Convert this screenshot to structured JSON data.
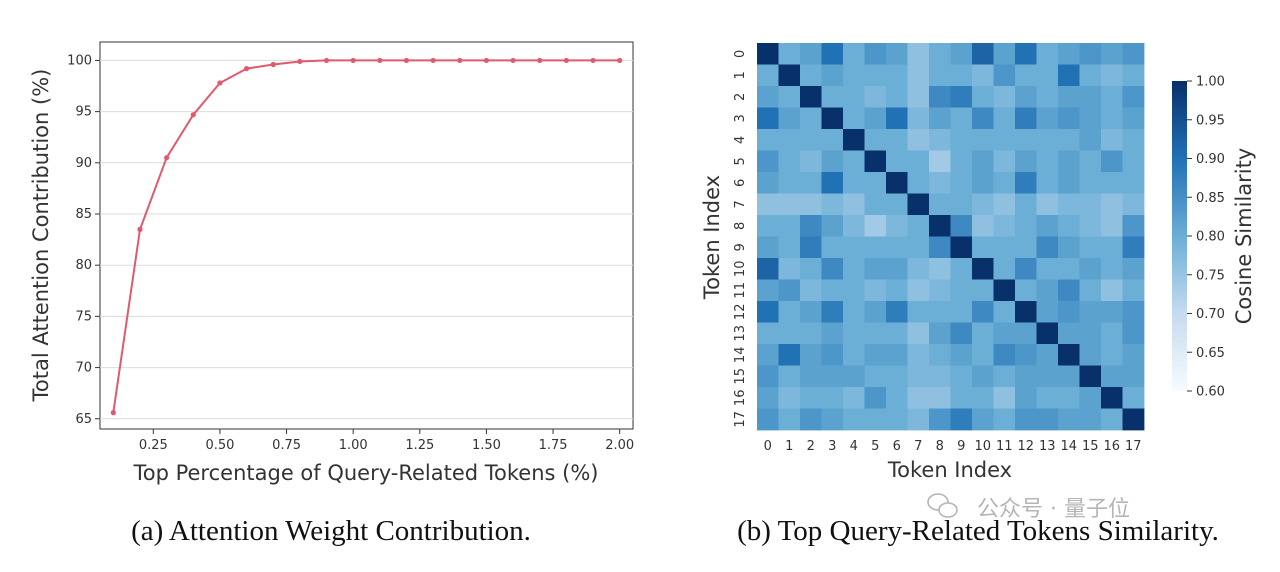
{
  "chart_data": [
    {
      "type": "line",
      "title": "",
      "xlabel": "Top Percentage of Query-Related Tokens (%)",
      "ylabel": "Total Attention Contribution (%)",
      "xlim": [
        0.05,
        2.05
      ],
      "ylim": [
        64,
        101.8
      ],
      "xticks": [
        0.25,
        0.5,
        0.75,
        1.0,
        1.25,
        1.5,
        1.75,
        2.0
      ],
      "xtick_labels": [
        "0.25",
        "0.50",
        "0.75",
        "1.00",
        "1.25",
        "1.50",
        "1.75",
        "2.00"
      ],
      "yticks": [
        65,
        70,
        75,
        80,
        85,
        90,
        95,
        100
      ],
      "ytick_labels": [
        "65",
        "70",
        "75",
        "80",
        "85",
        "90",
        "95",
        "100"
      ],
      "grid": "horizontal",
      "color": "#e05a6e",
      "series": [
        {
          "name": "attention contribution",
          "x": [
            0.1,
            0.2,
            0.3,
            0.4,
            0.5,
            0.6,
            0.7,
            0.8,
            0.9,
            1.0,
            1.1,
            1.2,
            1.3,
            1.4,
            1.5,
            1.6,
            1.7,
            1.8,
            1.9,
            2.0
          ],
          "y": [
            65.6,
            83.5,
            90.5,
            94.7,
            97.8,
            99.2,
            99.6,
            99.9,
            100,
            100,
            100,
            100,
            100,
            100,
            100,
            100,
            100,
            100,
            100,
            100
          ]
        }
      ]
    },
    {
      "type": "heatmap",
      "title": "",
      "xlabel": "Token Index",
      "ylabel": "Token Index",
      "x_labels": [
        "0",
        "1",
        "2",
        "3",
        "4",
        "5",
        "6",
        "7",
        "8",
        "9",
        "10",
        "11",
        "12",
        "13",
        "14",
        "15",
        "16",
        "17"
      ],
      "y_labels": [
        "0",
        "1",
        "2",
        "3",
        "4",
        "5",
        "6",
        "7",
        "8",
        "9",
        "10",
        "11",
        "12",
        "13",
        "14",
        "15",
        "16",
        "17"
      ],
      "colorbar_label": "Cosine Similarity",
      "colorbar_range": [
        0.6,
        1.0
      ],
      "colorbar_ticks": [
        0.6,
        0.65,
        0.7,
        0.75,
        0.8,
        0.85,
        0.9,
        0.95,
        1.0
      ],
      "colorbar_tick_labels": [
        "0.60",
        "0.65",
        "0.70",
        "0.75",
        "0.80",
        "0.85",
        "0.90",
        "0.95",
        "1.00"
      ],
      "values": [
        [
          1.0,
          0.8,
          0.82,
          0.9,
          0.8,
          0.84,
          0.82,
          0.76,
          0.8,
          0.82,
          0.92,
          0.82,
          0.9,
          0.8,
          0.82,
          0.84,
          0.82,
          0.84
        ],
        [
          0.8,
          1.0,
          0.8,
          0.82,
          0.8,
          0.8,
          0.8,
          0.76,
          0.8,
          0.8,
          0.78,
          0.84,
          0.8,
          0.8,
          0.9,
          0.8,
          0.78,
          0.8
        ],
        [
          0.82,
          0.8,
          1.0,
          0.8,
          0.8,
          0.78,
          0.8,
          0.76,
          0.86,
          0.88,
          0.8,
          0.78,
          0.82,
          0.8,
          0.82,
          0.82,
          0.8,
          0.84
        ],
        [
          0.9,
          0.82,
          0.8,
          1.0,
          0.8,
          0.82,
          0.9,
          0.78,
          0.82,
          0.8,
          0.86,
          0.8,
          0.88,
          0.82,
          0.84,
          0.82,
          0.8,
          0.82
        ],
        [
          0.8,
          0.8,
          0.8,
          0.8,
          1.0,
          0.8,
          0.8,
          0.76,
          0.78,
          0.8,
          0.8,
          0.8,
          0.8,
          0.8,
          0.8,
          0.82,
          0.78,
          0.8
        ],
        [
          0.84,
          0.8,
          0.78,
          0.82,
          0.8,
          1.0,
          0.8,
          0.8,
          0.74,
          0.8,
          0.82,
          0.78,
          0.82,
          0.8,
          0.82,
          0.8,
          0.84,
          0.8
        ],
        [
          0.82,
          0.8,
          0.8,
          0.9,
          0.8,
          0.8,
          1.0,
          0.8,
          0.78,
          0.8,
          0.82,
          0.8,
          0.88,
          0.8,
          0.82,
          0.8,
          0.8,
          0.8
        ],
        [
          0.76,
          0.76,
          0.76,
          0.78,
          0.76,
          0.8,
          0.8,
          1.0,
          0.8,
          0.8,
          0.78,
          0.76,
          0.8,
          0.76,
          0.78,
          0.78,
          0.76,
          0.78
        ],
        [
          0.8,
          0.8,
          0.86,
          0.82,
          0.78,
          0.74,
          0.78,
          0.8,
          1.0,
          0.86,
          0.76,
          0.78,
          0.8,
          0.82,
          0.8,
          0.78,
          0.76,
          0.84
        ],
        [
          0.82,
          0.8,
          0.88,
          0.8,
          0.8,
          0.8,
          0.8,
          0.8,
          0.86,
          1.0,
          0.8,
          0.8,
          0.8,
          0.86,
          0.82,
          0.8,
          0.8,
          0.88
        ],
        [
          0.92,
          0.78,
          0.8,
          0.86,
          0.8,
          0.82,
          0.82,
          0.78,
          0.76,
          0.8,
          1.0,
          0.8,
          0.86,
          0.8,
          0.8,
          0.82,
          0.8,
          0.82
        ],
        [
          0.82,
          0.84,
          0.78,
          0.8,
          0.8,
          0.78,
          0.8,
          0.76,
          0.78,
          0.8,
          0.8,
          1.0,
          0.8,
          0.82,
          0.86,
          0.8,
          0.76,
          0.8
        ],
        [
          0.9,
          0.8,
          0.82,
          0.88,
          0.8,
          0.82,
          0.88,
          0.8,
          0.8,
          0.8,
          0.86,
          0.8,
          1.0,
          0.82,
          0.84,
          0.82,
          0.82,
          0.84
        ],
        [
          0.8,
          0.8,
          0.8,
          0.82,
          0.8,
          0.8,
          0.8,
          0.76,
          0.82,
          0.86,
          0.8,
          0.82,
          0.82,
          1.0,
          0.82,
          0.82,
          0.8,
          0.84
        ],
        [
          0.82,
          0.9,
          0.82,
          0.84,
          0.8,
          0.82,
          0.82,
          0.78,
          0.8,
          0.82,
          0.8,
          0.86,
          0.84,
          0.82,
          1.0,
          0.82,
          0.8,
          0.82
        ],
        [
          0.84,
          0.8,
          0.82,
          0.82,
          0.82,
          0.8,
          0.8,
          0.78,
          0.78,
          0.8,
          0.82,
          0.8,
          0.82,
          0.82,
          0.82,
          1.0,
          0.82,
          0.82
        ],
        [
          0.82,
          0.78,
          0.8,
          0.8,
          0.78,
          0.84,
          0.8,
          0.76,
          0.76,
          0.8,
          0.8,
          0.76,
          0.82,
          0.8,
          0.8,
          0.82,
          1.0,
          0.8
        ],
        [
          0.84,
          0.8,
          0.84,
          0.82,
          0.8,
          0.8,
          0.8,
          0.78,
          0.84,
          0.88,
          0.82,
          0.8,
          0.84,
          0.84,
          0.82,
          0.82,
          0.8,
          1.0
        ]
      ]
    }
  ],
  "captions": {
    "left": "(a) Attention Weight Contribution.",
    "right": "(b) Top Query-Related Tokens Similarity."
  },
  "watermark": "公众号 · 量子位"
}
